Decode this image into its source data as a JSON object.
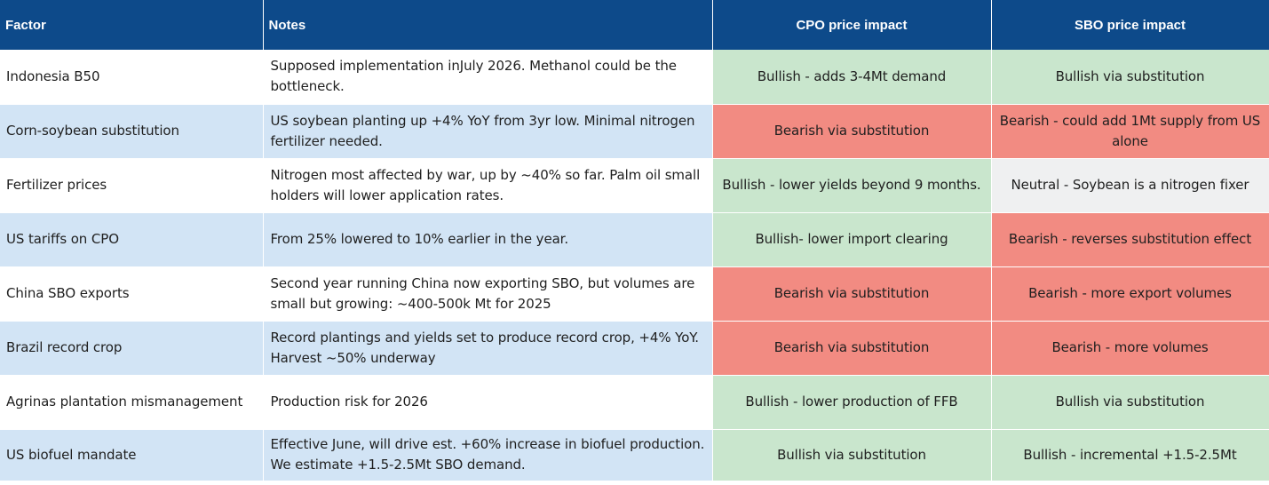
{
  "colors": {
    "header_bg": "#0d4a8a",
    "row_blue": "#d2e4f5",
    "row_white": "#ffffff",
    "bullish": "#c9e6cd",
    "bearish": "#f28b82",
    "neutral": "#eff0f1"
  },
  "headers": {
    "factor": "Factor",
    "notes": "Notes",
    "cpo": "CPO price impact",
    "sbo": "SBO price impact"
  },
  "rows": [
    {
      "factor": "Indonesia B50",
      "notes": "Supposed implementation inJuly 2026. Methanol could be the bottleneck.",
      "cpo": "Bullish - adds 3-4Mt demand",
      "cpo_sentiment": "bullish",
      "sbo": "Bullish via substitution",
      "sbo_sentiment": "bullish"
    },
    {
      "factor": "Corn-soybean substitution",
      "notes": "US soybean planting up +4% YoY from 3yr low. Minimal nitrogen fertilizer needed.",
      "cpo": "Bearish via substitution",
      "cpo_sentiment": "bearish",
      "sbo": "Bearish - could add 1Mt supply from US alone",
      "sbo_sentiment": "bearish"
    },
    {
      "factor": "Fertilizer prices",
      "notes": "Nitrogen most affected by war, up by ~40% so far. Palm oil small holders will lower application rates.",
      "cpo": "Bullish - lower yields beyond 9 months.",
      "cpo_sentiment": "bullish",
      "sbo": "Neutral - Soybean is a nitrogen fixer",
      "sbo_sentiment": "neutral"
    },
    {
      "factor": "US tariffs on CPO",
      "notes": "From 25% lowered to 10% earlier in the year.",
      "cpo": "Bullish- lower import clearing",
      "cpo_sentiment": "bullish",
      "sbo": "Bearish - reverses substitution effect",
      "sbo_sentiment": "bearish"
    },
    {
      "factor": "China SBO exports",
      "notes": "Second year running China now exporting SBO, but volumes are small but growing: ~400-500k Mt for 2025",
      "cpo": "Bearish via substitution",
      "cpo_sentiment": "bearish",
      "sbo": "Bearish - more export volumes",
      "sbo_sentiment": "bearish"
    },
    {
      "factor": "Brazil record crop",
      "notes": "Record plantings and yields set to produce record crop, +4% YoY. Harvest ~50% underway",
      "cpo": "Bearish via substitution",
      "cpo_sentiment": "bearish",
      "sbo": "Bearish - more volumes",
      "sbo_sentiment": "bearish"
    },
    {
      "factor": "Agrinas plantation mismanagement",
      "notes": "Production risk for 2026",
      "cpo": "Bullish - lower production of FFB",
      "cpo_sentiment": "bullish",
      "sbo": "Bullish via substitution",
      "sbo_sentiment": "bullish"
    },
    {
      "factor": "US biofuel mandate",
      "notes": "Effective June, will drive est. +60% increase in biofuel production. We estimate +1.5-2.5Mt SBO demand.",
      "cpo": "Bullish via substitution",
      "cpo_sentiment": "bullish",
      "sbo": "Bullish - incremental +1.5-2.5Mt",
      "sbo_sentiment": "bullish"
    }
  ]
}
